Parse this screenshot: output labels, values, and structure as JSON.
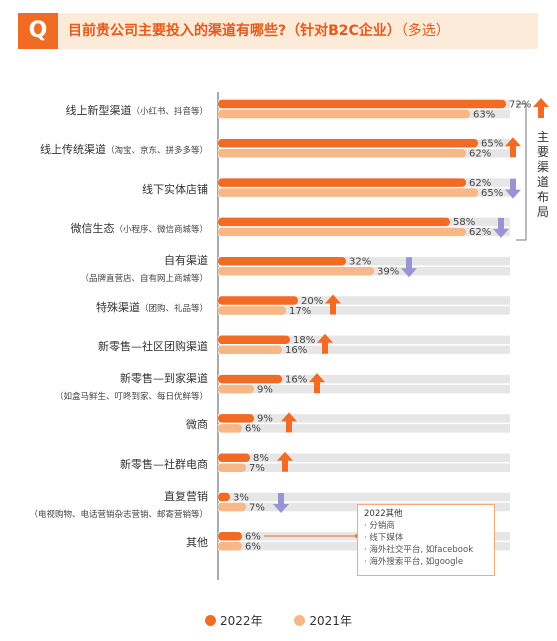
{
  "header": {
    "badge": "Q",
    "question": "目前贵公司主要投入的渠道有哪些?（针对B2C企业）",
    "question_suffix": "（多选）"
  },
  "side_label": "主要渠道布局",
  "note_box": {
    "title": "2022其他",
    "items": [
      "· 分销商",
      "· 线下媒体",
      "· 海外社交平台, 如facebook",
      "· 海外搜索平台, 如google"
    ]
  },
  "colors": {
    "series_2022": "#f26b25",
    "series_2021": "#f8b786",
    "arrow_up": "#f26b25",
    "arrow_down": "#9a93d6",
    "track": "#e6e6e6"
  },
  "chart_data": {
    "type": "bar",
    "orientation": "horizontal",
    "categories": [
      {
        "main": "线上新型渠道",
        "note": "（小红书、抖音等）"
      },
      {
        "main": "线上传统渠道",
        "note": "（淘宝、京东、拼多多等）"
      },
      {
        "main": "线下实体店铺",
        "note": ""
      },
      {
        "main": "微信生态",
        "note": "（小程序、微信商城等）"
      },
      {
        "main": "自有渠道",
        "note": "（品牌直营店、自有网上商城等）"
      },
      {
        "main": "特殊渠道",
        "note": "（团购、礼品等）"
      },
      {
        "main": "新零售—社区团购渠道",
        "note": ""
      },
      {
        "main": "新零售—到家渠道",
        "note": "（如盒马鲜生、叮咚到家、每日优鲜等）"
      },
      {
        "main": "微商",
        "note": ""
      },
      {
        "main": "新零售—社群电商",
        "note": ""
      },
      {
        "main": "直复营销",
        "note": "（电视购物、电话营销杂志营销、邮寄营销等）"
      },
      {
        "main": "其他",
        "note": ""
      }
    ],
    "series": [
      {
        "name": "2022年",
        "values": [
          72,
          65,
          62,
          58,
          32,
          20,
          18,
          16,
          9,
          8,
          3,
          6
        ]
      },
      {
        "name": "2021年",
        "values": [
          63,
          62,
          65,
          62,
          39,
          17,
          16,
          9,
          6,
          7,
          7,
          6
        ]
      }
    ],
    "trend": [
      "up",
      "up",
      "down",
      "down",
      "down",
      "up",
      "up",
      "up",
      "up",
      "up",
      "down",
      "none"
    ],
    "value_suffix": "%",
    "xlim": [
      0,
      80
    ]
  }
}
